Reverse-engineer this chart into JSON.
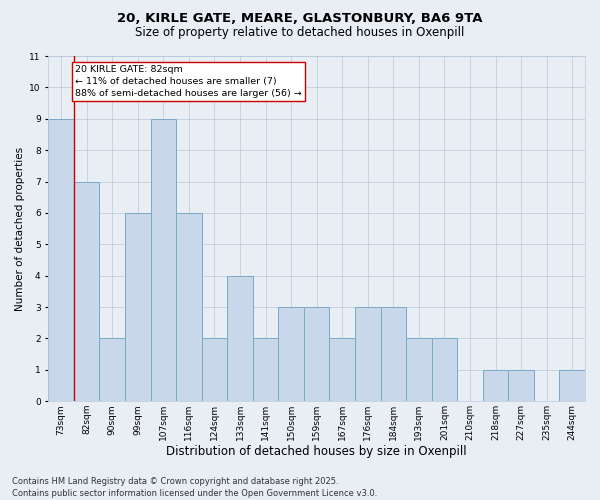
{
  "title1": "20, KIRLE GATE, MEARE, GLASTONBURY, BA6 9TA",
  "title2": "Size of property relative to detached houses in Oxenpill",
  "xlabel": "Distribution of detached houses by size in Oxenpill",
  "ylabel": "Number of detached properties",
  "categories": [
    "73sqm",
    "82sqm",
    "90sqm",
    "99sqm",
    "107sqm",
    "116sqm",
    "124sqm",
    "133sqm",
    "141sqm",
    "150sqm",
    "159sqm",
    "167sqm",
    "176sqm",
    "184sqm",
    "193sqm",
    "201sqm",
    "210sqm",
    "218sqm",
    "227sqm",
    "235sqm",
    "244sqm"
  ],
  "values": [
    9,
    7,
    2,
    6,
    9,
    6,
    2,
    4,
    2,
    3,
    3,
    2,
    3,
    3,
    2,
    2,
    0,
    1,
    1,
    0,
    1
  ],
  "bar_color": "#c8d8ea",
  "bar_edge_color": "#7aaac8",
  "highlight_line_color": "#cc0000",
  "annotation_title": "20 KIRLE GATE: 82sqm",
  "annotation_line1": "← 11% of detached houses are smaller (7)",
  "annotation_line2": "88% of semi-detached houses are larger (56) →",
  "annotation_box_color": "#ffffff",
  "annotation_box_edge": "#cc0000",
  "ylim": [
    0,
    11
  ],
  "yticks": [
    0,
    1,
    2,
    3,
    4,
    5,
    6,
    7,
    8,
    9,
    10,
    11
  ],
  "footer1": "Contains HM Land Registry data © Crown copyright and database right 2025.",
  "footer2": "Contains public sector information licensed under the Open Government Licence v3.0.",
  "background_color": "#e8eef4",
  "grid_color": "#b8c8d8",
  "title_fontsize": 9.5,
  "subtitle_fontsize": 8.5,
  "xlabel_fontsize": 8.5,
  "ylabel_fontsize": 7.5,
  "tick_fontsize": 6.5,
  "annotation_fontsize": 6.8,
  "footer_fontsize": 6.0
}
